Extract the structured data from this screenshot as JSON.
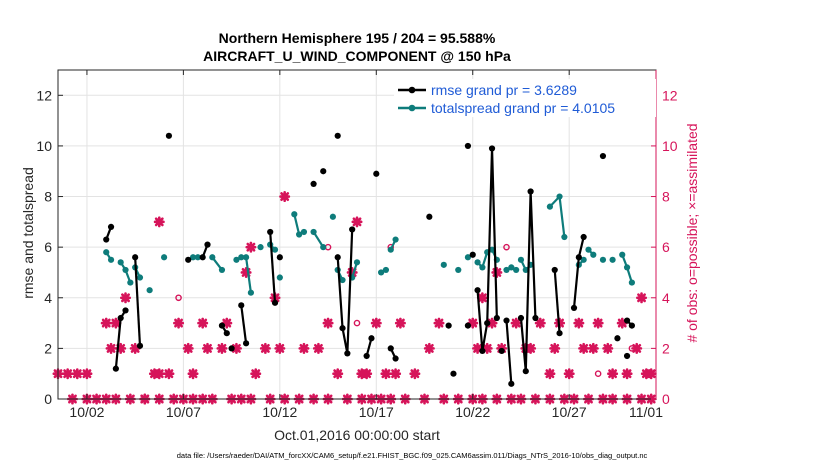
{
  "figure": {
    "title_line1": "Northern Hemisphere 195 / 204 = 95.588%",
    "title_line2": "AIRCRAFT_U_WIND_COMPONENT @ 150 hPa",
    "xlabel": "Oct.01,2016 00:00:00 start",
    "ylabel_left": "rmse and totalspread",
    "ylabel_right": "# of obs: o=possible; ×=assimilated",
    "footnote": "data file: /Users/raeder/DAI/ATM_forcXX/CAM6_setup/f.e21.FHIST_BGC.f09_025.CAM6assim.011/Diags_NTrS_2016-10/obs_diag_output.nc",
    "colors": {
      "rmse": "#000000",
      "spread": "#0e7c7b",
      "obs": "#d6145a",
      "axis": "#262626",
      "grid": "#e3e3e3"
    }
  },
  "chart_data": {
    "type": "line",
    "xlim": [
      0.5,
      31.5
    ],
    "ylim": [
      0,
      13
    ],
    "y2lim": [
      0,
      13
    ],
    "grid": true,
    "legend_position": "top-right",
    "x_ticks": [
      {
        "x": 2,
        "label": "10/02"
      },
      {
        "x": 7,
        "label": "10/07"
      },
      {
        "x": 12,
        "label": "10/12"
      },
      {
        "x": 17,
        "label": "10/17"
      },
      {
        "x": 22,
        "label": "10/22"
      },
      {
        "x": 27,
        "label": "10/27"
      },
      {
        "x": 32,
        "label": "11/01"
      }
    ],
    "y_ticks": [
      0,
      2,
      4,
      6,
      8,
      10,
      12
    ],
    "y2_ticks": [
      0,
      2,
      4,
      6,
      8,
      10,
      12
    ],
    "series": [
      {
        "name": "rmse grand pr = 3.6289",
        "role": "rmse",
        "segments": [
          [
            [
              3.0,
              6.3
            ],
            [
              3.25,
              6.8
            ]
          ],
          [
            [
              3.5,
              1.2
            ],
            [
              3.75,
              3.2
            ],
            [
              4.0,
              3.5
            ]
          ],
          [
            [
              4.5,
              5.6
            ],
            [
              4.75,
              2.1
            ]
          ],
          [
            [
              8.0,
              5.6
            ],
            [
              8.25,
              6.1
            ]
          ],
          [
            [
              9.0,
              2.9
            ],
            [
              9.25,
              2.6
            ]
          ],
          [
            [
              10.0,
              3.7
            ],
            [
              10.25,
              2.2
            ]
          ],
          [
            [
              11.5,
              6.6
            ],
            [
              11.75,
              3.8
            ]
          ],
          [
            [
              15.0,
              5.6
            ],
            [
              15.25,
              2.8
            ],
            [
              15.5,
              1.8
            ],
            [
              15.75,
              6.7
            ]
          ],
          [
            [
              16.5,
              1.7
            ],
            [
              16.75,
              2.4
            ]
          ],
          [
            [
              17.75,
              2.0
            ],
            [
              18.0,
              1.6
            ]
          ],
          [
            [
              22.25,
              4.3
            ],
            [
              22.5,
              1.9
            ],
            [
              22.75,
              3.0
            ],
            [
              23.0,
              9.9
            ],
            [
              23.25,
              3.2
            ]
          ],
          [
            [
              23.75,
              3.1
            ],
            [
              24.0,
              0.6
            ]
          ],
          [
            [
              24.5,
              3.2
            ],
            [
              24.75,
              1.1
            ],
            [
              25.0,
              8.2
            ],
            [
              25.25,
              3.2
            ]
          ],
          [
            [
              26.25,
              5.1
            ],
            [
              26.5,
              2.6
            ]
          ],
          [
            [
              27.25,
              3.6
            ],
            [
              27.5,
              5.6
            ],
            [
              27.75,
              6.4
            ]
          ],
          [
            [
              30.0,
              3.1
            ],
            [
              30.25,
              2.9
            ]
          ]
        ],
        "points": [
          [
            6.25,
            10.4
          ],
          [
            7.25,
            5.5
          ],
          [
            9.5,
            2.0
          ],
          [
            12.0,
            5.6
          ],
          [
            13.75,
            8.5
          ],
          [
            14.25,
            9.0
          ],
          [
            15.0,
            10.4
          ],
          [
            17.0,
            8.9
          ],
          [
            19.75,
            7.2
          ],
          [
            20.75,
            2.9
          ],
          [
            21.0,
            1.0
          ],
          [
            21.75,
            10.0
          ],
          [
            21.75,
            2.9
          ],
          [
            22.0,
            5.7
          ],
          [
            23.5,
            1.9
          ],
          [
            28.75,
            9.6
          ],
          [
            30.0,
            1.7
          ],
          [
            29.5,
            2.4
          ]
        ]
      },
      {
        "name": "totalspread grand pr = 4.0105",
        "role": "spread",
        "segments": [
          [
            [
              3.0,
              5.8
            ],
            [
              3.25,
              5.5
            ]
          ],
          [
            [
              3.75,
              5.4
            ],
            [
              4.0,
              5.1
            ],
            [
              4.25,
              4.6
            ]
          ],
          [
            [
              4.5,
              5.2
            ],
            [
              4.75,
              4.8
            ]
          ],
          [
            [
              7.5,
              5.6
            ],
            [
              7.75,
              5.6
            ]
          ],
          [
            [
              8.5,
              5.6
            ],
            [
              9.0,
              5.1
            ]
          ],
          [
            [
              9.75,
              5.5
            ],
            [
              10.0,
              5.6
            ]
          ],
          [
            [
              10.25,
              5.6
            ],
            [
              10.5,
              4.2
            ]
          ],
          [
            [
              11.5,
              6.1
            ],
            [
              11.75,
              5.9
            ]
          ],
          [
            [
              12.75,
              7.3
            ],
            [
              13.0,
              6.5
            ],
            [
              13.25,
              6.6
            ]
          ],
          [
            [
              13.75,
              6.6
            ],
            [
              14.25,
              6.0
            ]
          ],
          [
            [
              15.0,
              5.1
            ],
            [
              15.25,
              4.7
            ]
          ],
          [
            [
              15.75,
              4.8
            ],
            [
              16.0,
              5.4
            ]
          ],
          [
            [
              17.25,
              5.0
            ],
            [
              17.5,
              5.1
            ]
          ],
          [
            [
              17.75,
              5.9
            ],
            [
              18.0,
              6.3
            ]
          ],
          [
            [
              22.25,
              5.4
            ],
            [
              22.5,
              5.2
            ],
            [
              22.75,
              5.8
            ],
            [
              23.0,
              5.9
            ],
            [
              23.25,
              5.5
            ]
          ],
          [
            [
              23.75,
              5.1
            ],
            [
              24.0,
              5.2
            ]
          ],
          [
            [
              24.5,
              5.5
            ],
            [
              24.75,
              5.1
            ],
            [
              25.0,
              5.3
            ]
          ],
          [
            [
              26.0,
              7.6
            ],
            [
              26.5,
              8.0
            ],
            [
              26.75,
              6.4
            ]
          ],
          [
            [
              27.5,
              5.3
            ],
            [
              27.75,
              5.5
            ]
          ],
          [
            [
              28.0,
              5.9
            ],
            [
              28.25,
              5.7
            ]
          ],
          [
            [
              29.75,
              5.7
            ],
            [
              30.0,
              5.2
            ],
            [
              30.25,
              4.6
            ]
          ]
        ],
        "points": [
          [
            5.25,
            4.3
          ],
          [
            6.0,
            5.6
          ],
          [
            11.0,
            6.0
          ],
          [
            12.0,
            4.8
          ],
          [
            14.75,
            7.2
          ],
          [
            20.5,
            5.3
          ],
          [
            21.25,
            5.1
          ],
          [
            21.75,
            5.6
          ],
          [
            24.25,
            5.1
          ],
          [
            28.75,
            5.5
          ],
          [
            29.25,
            5.5
          ]
        ]
      },
      {
        "name": "# of obs possible",
        "role": "obs_possible",
        "points": [
          [
            6.75,
            4.0
          ],
          [
            14.5,
            6.0
          ],
          [
            16.0,
            3.0
          ],
          [
            17.75,
            6.0
          ],
          [
            23.75,
            6.0
          ],
          [
            28.5,
            1.0
          ],
          [
            30.25,
            2.0
          ]
        ]
      },
      {
        "name": "# of obs assimilated",
        "role": "obs_assimilated",
        "points": [
          [
            0.5,
            1
          ],
          [
            1.0,
            1
          ],
          [
            1.25,
            0
          ],
          [
            2.0,
            0
          ],
          [
            2.5,
            0
          ],
          [
            3.0,
            0
          ],
          [
            3.5,
            0
          ],
          [
            4.25,
            0
          ],
          [
            5.0,
            0
          ],
          [
            5.75,
            0
          ],
          [
            6.5,
            0
          ],
          [
            7.0,
            0
          ],
          [
            7.5,
            0
          ],
          [
            8.0,
            0
          ],
          [
            8.5,
            0
          ],
          [
            9.5,
            0
          ],
          [
            10.0,
            0
          ],
          [
            10.5,
            0
          ],
          [
            11.5,
            0
          ],
          [
            12.25,
            0
          ],
          [
            13.0,
            0
          ],
          [
            13.75,
            0
          ],
          [
            14.5,
            0
          ],
          [
            15.5,
            0
          ],
          [
            16.25,
            0
          ],
          [
            16.75,
            0
          ],
          [
            17.25,
            0
          ],
          [
            17.75,
            0
          ],
          [
            18.5,
            0
          ],
          [
            19.5,
            0
          ],
          [
            20.5,
            0
          ],
          [
            21.25,
            0
          ],
          [
            22.0,
            0
          ],
          [
            22.5,
            0
          ],
          [
            23.25,
            0
          ],
          [
            24.0,
            0
          ],
          [
            24.5,
            0
          ],
          [
            25.25,
            0
          ],
          [
            26.0,
            0
          ],
          [
            26.75,
            0
          ],
          [
            27.25,
            0
          ],
          [
            28.0,
            0
          ],
          [
            28.75,
            0
          ],
          [
            29.25,
            0
          ],
          [
            30.0,
            0
          ],
          [
            30.75,
            0
          ],
          [
            31.25,
            0
          ],
          [
            1.5,
            1
          ],
          [
            2.0,
            1
          ],
          [
            3.0,
            3
          ],
          [
            3.25,
            2
          ],
          [
            3.75,
            2
          ],
          [
            4.0,
            4
          ],
          [
            3.5,
            3
          ],
          [
            4.5,
            2
          ],
          [
            5.0,
            0
          ],
          [
            5.5,
            1
          ],
          [
            5.75,
            7
          ],
          [
            5.75,
            1
          ],
          [
            6.25,
            1
          ],
          [
            6.75,
            3
          ],
          [
            7.25,
            2
          ],
          [
            7.5,
            1
          ],
          [
            8.0,
            3
          ],
          [
            8.25,
            2
          ],
          [
            9.0,
            2
          ],
          [
            9.25,
            3
          ],
          [
            9.75,
            2
          ],
          [
            10.25,
            5
          ],
          [
            10.5,
            6
          ],
          [
            10.75,
            1
          ],
          [
            11.25,
            2
          ],
          [
            11.75,
            4
          ],
          [
            12.0,
            2
          ],
          [
            12.25,
            8
          ],
          [
            13.25,
            2
          ],
          [
            14.5,
            3
          ],
          [
            14.0,
            2
          ],
          [
            15.0,
            1
          ],
          [
            15.75,
            5
          ],
          [
            16.0,
            7
          ],
          [
            16.25,
            1
          ],
          [
            16.5,
            1
          ],
          [
            17.0,
            3
          ],
          [
            17.5,
            1
          ],
          [
            18.0,
            1
          ],
          [
            18.25,
            3
          ],
          [
            19.0,
            1
          ],
          [
            19.75,
            2
          ],
          [
            20.25,
            3
          ],
          [
            22.0,
            3
          ],
          [
            22.25,
            2
          ],
          [
            22.5,
            4
          ],
          [
            22.75,
            2
          ],
          [
            23.0,
            3
          ],
          [
            23.25,
            5
          ],
          [
            23.5,
            2
          ],
          [
            24.25,
            3
          ],
          [
            24.75,
            2
          ],
          [
            25.0,
            2
          ],
          [
            25.5,
            3
          ],
          [
            26.0,
            1
          ],
          [
            26.25,
            2
          ],
          [
            26.5,
            3
          ],
          [
            27.0,
            1
          ],
          [
            27.5,
            3
          ],
          [
            27.75,
            2
          ],
          [
            28.25,
            2
          ],
          [
            28.5,
            3
          ],
          [
            29.0,
            2
          ],
          [
            29.25,
            1
          ],
          [
            29.75,
            3
          ],
          [
            30.0,
            1
          ],
          [
            30.5,
            2
          ],
          [
            30.75,
            4
          ],
          [
            31.0,
            1
          ],
          [
            31.25,
            1
          ]
        ]
      }
    ]
  }
}
